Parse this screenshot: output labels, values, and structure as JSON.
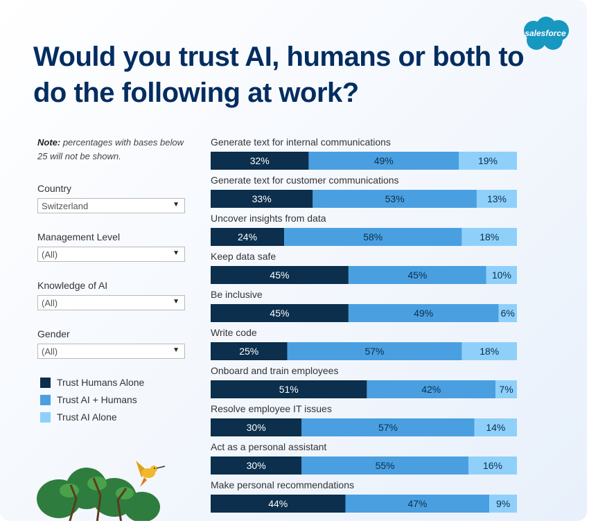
{
  "title": "Would you trust AI, humans or both to do the following at work?",
  "brand": "salesforce",
  "note": {
    "prefix": "Note:",
    "text": " percentages with bases below 25 will not be shown."
  },
  "filters": [
    {
      "label": "Country",
      "value": "Switzerland"
    },
    {
      "label": "Management Level",
      "value": "(All)"
    },
    {
      "label": "Knowledge of AI",
      "value": "(All)"
    },
    {
      "label": "Gender",
      "value": "(All)"
    }
  ],
  "legend": [
    {
      "label": "Trust Humans Alone",
      "color": "#0b2f4c"
    },
    {
      "label": "Trust AI + Humans",
      "color": "#4a9fe0"
    },
    {
      "label": "Trust AI Alone",
      "color": "#8fd0fb"
    }
  ],
  "chart_data": {
    "type": "bar",
    "orientation": "horizontal",
    "stacked": true,
    "unit": "%",
    "categories": [
      "Generate text for internal communications",
      "Generate text for customer communications",
      "Uncover insights from data",
      "Keep data safe",
      "Be inclusive",
      "Write code",
      "Onboard and train employees",
      "Resolve employee IT issues",
      "Act as a personal assistant",
      "Make personal recommendations"
    ],
    "series": [
      {
        "name": "Trust Humans Alone",
        "color": "#0b2f4c",
        "values": [
          32,
          33,
          24,
          45,
          45,
          25,
          51,
          30,
          30,
          44
        ]
      },
      {
        "name": "Trust AI + Humans",
        "color": "#4a9fe0",
        "values": [
          49,
          53,
          58,
          45,
          49,
          57,
          42,
          57,
          55,
          47
        ]
      },
      {
        "name": "Trust AI Alone",
        "color": "#8fd0fb",
        "values": [
          19,
          13,
          18,
          10,
          6,
          18,
          7,
          14,
          16,
          9
        ]
      }
    ]
  }
}
